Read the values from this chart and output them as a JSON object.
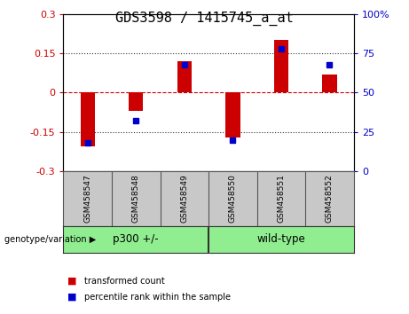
{
  "title": "GDS3598 / 1415745_a_at",
  "samples": [
    "GSM458547",
    "GSM458548",
    "GSM458549",
    "GSM458550",
    "GSM458551",
    "GSM458552"
  ],
  "transformed_count": [
    -0.205,
    -0.07,
    0.12,
    -0.17,
    0.2,
    0.07
  ],
  "percentile_rank": [
    18,
    32,
    68,
    20,
    78,
    68
  ],
  "groups": [
    {
      "label": "p300 +/-",
      "indices": [
        0,
        1,
        2
      ]
    },
    {
      "label": "wild-type",
      "indices": [
        3,
        4,
        5
      ]
    }
  ],
  "group_boundary": 3,
  "ylim_left": [
    -0.3,
    0.3
  ],
  "ylim_right": [
    0,
    100
  ],
  "yticks_left": [
    -0.3,
    -0.15,
    0,
    0.15,
    0.3
  ],
  "yticks_right": [
    0,
    25,
    50,
    75,
    100
  ],
  "bar_color": "#CC0000",
  "dot_color": "#0000CC",
  "hline_color": "#CC0000",
  "dotted_color": "#333333",
  "background_plot": "#FFFFFF",
  "background_label": "#C8C8C8",
  "background_group": "#90EE90",
  "legend_red_label": "transformed count",
  "legend_blue_label": "percentile rank within the sample",
  "genotype_label": "genotype/variation",
  "title_fontsize": 11,
  "tick_fontsize": 8,
  "label_fontsize": 8,
  "bar_width": 0.3
}
